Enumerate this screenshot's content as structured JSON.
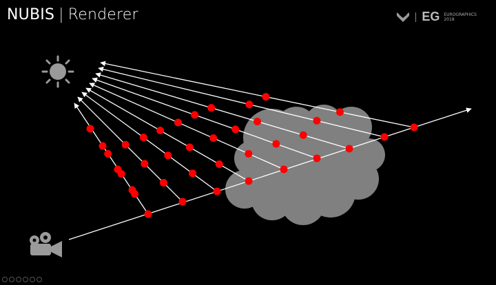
{
  "header": {
    "title_main": "NUBIS",
    "title_separator": "|",
    "title_sub": "Renderer"
  },
  "logo": {
    "mark": "EG",
    "text_line1": "EUROGRAPHICS",
    "text_line2": "2018"
  },
  "diagram": {
    "icons": [
      "sun-icon",
      "camera-icon",
      "cloud-shape"
    ],
    "colors": {
      "background": "#000000",
      "rays": "#ffffff",
      "sample_points": "#ff0000",
      "cloud": "#808080",
      "sun": "#9a9a9a",
      "camera": "#9a9a9a"
    }
  }
}
